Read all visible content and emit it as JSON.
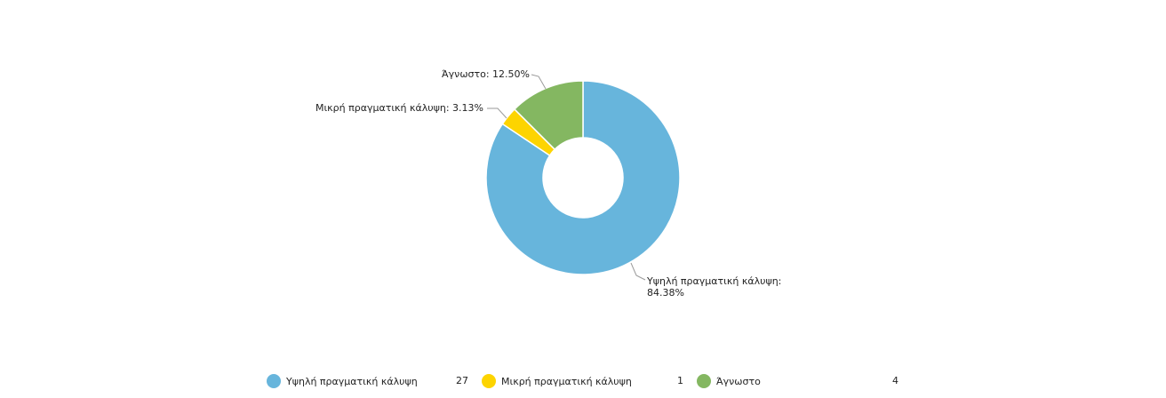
{
  "chart_data": {
    "type": "pie",
    "donut": true,
    "slices": [
      {
        "name": "Υψηλή πραγματική κάλυψη",
        "percent": 84.38,
        "count": 27,
        "color": "#67b5dc",
        "label_line1": "Υψηλή πραγματική κάλυψη:",
        "label_line2": "84.38%"
      },
      {
        "name": "Μικρή πραγματική κάλυψη",
        "percent": 3.13,
        "count": 1,
        "color": "#fdd400",
        "label_line1": "Μικρή πραγματική κάλυψη: 3.13%",
        "label_line2": ""
      },
      {
        "name": "Άγνωστο",
        "percent": 12.5,
        "count": 4,
        "color": "#84b761",
        "label_line1": "Άγνωστο: 12.50%",
        "label_line2": ""
      }
    ],
    "legend_position": "bottom"
  },
  "legend": [
    {
      "label": "Υψηλή πραγματική κάλυψη",
      "count": "27",
      "color": "#67b5dc"
    },
    {
      "label": "Μικρή πραγματική κάλυψη",
      "count": "1",
      "color": "#fdd400"
    },
    {
      "label": "Άγνωστο",
      "count": "4",
      "color": "#84b761"
    }
  ]
}
